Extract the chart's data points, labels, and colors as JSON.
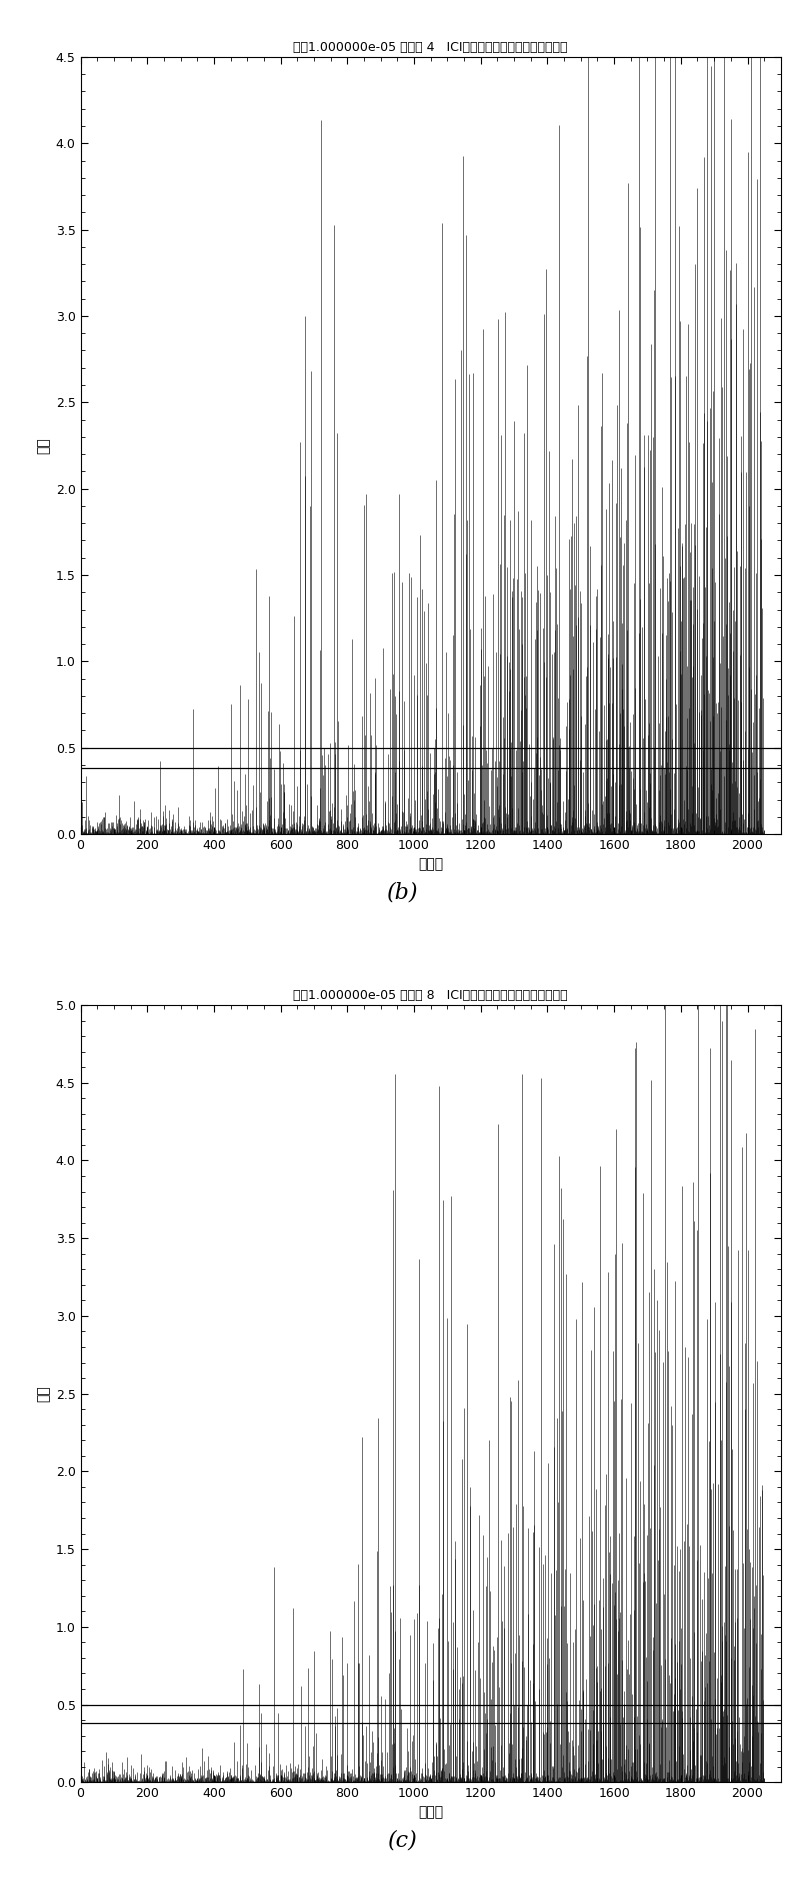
{
  "chart_b": {
    "title": "频偏1.000000e-05 符号： 4   ICI相位噪声占最大允许相移的比例",
    "xlabel": "千赋次",
    "ylabel": "比例",
    "ylim": [
      0,
      4.5
    ],
    "xlim": [
      0,
      2100
    ],
    "yticks": [
      0,
      0.5,
      1,
      1.5,
      2,
      2.5,
      3,
      3.5,
      4,
      4.5
    ],
    "xticks": [
      0,
      200,
      400,
      600,
      800,
      1000,
      1200,
      1400,
      1600,
      1800,
      2000
    ],
    "hline1": 0.5,
    "hline2": 0.38,
    "label": "(b)",
    "seed": 42,
    "n_points": 2048,
    "quiet_until": 300,
    "sparse_until": 700
  },
  "chart_c": {
    "title": "频偏1.000000e-05 符号： 8   ICI相位噪声占最大允许相移的比例",
    "xlabel": "千赋次",
    "ylabel": "比例",
    "ylim": [
      0,
      5
    ],
    "xlim": [
      0,
      2100
    ],
    "yticks": [
      0,
      0.5,
      1,
      1.5,
      2,
      2.5,
      3,
      3.5,
      4,
      4.5,
      5
    ],
    "xticks": [
      0,
      200,
      400,
      600,
      800,
      1000,
      1200,
      1400,
      1600,
      1800,
      2000
    ],
    "hline1": 0.5,
    "hline2": 0.38,
    "label": "(c)",
    "seed": 77,
    "n_points": 2048,
    "quiet_until": 400,
    "sparse_until": 900
  },
  "background_color": "#ffffff",
  "line_color": "#000000",
  "hline_color": "#000000",
  "title_fontsize": 9,
  "label_fontsize": 10,
  "tick_fontsize": 9,
  "caption_fontsize": 16
}
